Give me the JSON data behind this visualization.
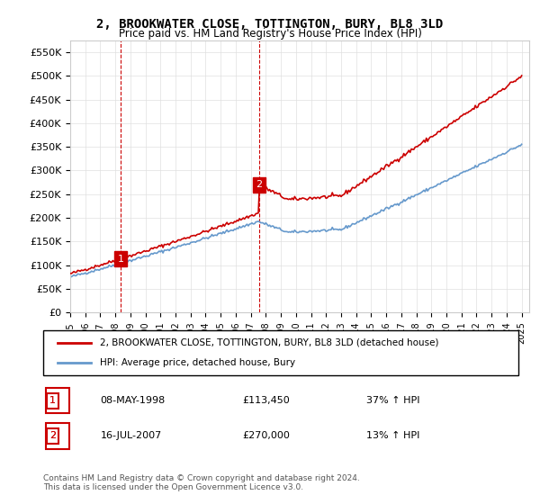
{
  "title": "2, BROOKWATER CLOSE, TOTTINGTON, BURY, BL8 3LD",
  "subtitle": "Price paid vs. HM Land Registry's House Price Index (HPI)",
  "ylabel_ticks": [
    "£0",
    "£50K",
    "£100K",
    "£150K",
    "£200K",
    "£250K",
    "£300K",
    "£350K",
    "£400K",
    "£450K",
    "£500K",
    "£550K"
  ],
  "ytick_values": [
    0,
    50000,
    100000,
    150000,
    200000,
    250000,
    300000,
    350000,
    400000,
    450000,
    500000,
    550000
  ],
  "xlim_start": 1995.0,
  "xlim_end": 2025.5,
  "ylim": [
    0,
    575000
  ],
  "background_color": "#ffffff",
  "grid_color": "#e0e0e0",
  "sale1_x": 1998.36,
  "sale1_y": 113450,
  "sale1_label": "1",
  "sale2_x": 2007.54,
  "sale2_y": 270000,
  "sale2_label": "2",
  "legend_entry1": "2, BROOKWATER CLOSE, TOTTINGTON, BURY, BL8 3LD (detached house)",
  "legend_entry2": "HPI: Average price, detached house, Bury",
  "table_row1": [
    "1",
    "08-MAY-1998",
    "£113,450",
    "37% ↑ HPI"
  ],
  "table_row2": [
    "2",
    "16-JUL-2007",
    "£270,000",
    "13% ↑ HPI"
  ],
  "footer": "Contains HM Land Registry data © Crown copyright and database right 2024.\nThis data is licensed under the Open Government Licence v3.0.",
  "line_red_color": "#cc0000",
  "line_blue_color": "#6699cc",
  "dashed_line_color": "#cc0000",
  "xticks": [
    1995,
    1996,
    1997,
    1998,
    1999,
    2000,
    2001,
    2002,
    2003,
    2004,
    2005,
    2006,
    2007,
    2008,
    2009,
    2010,
    2011,
    2012,
    2013,
    2014,
    2015,
    2016,
    2017,
    2018,
    2019,
    2020,
    2021,
    2022,
    2023,
    2024,
    2025
  ]
}
